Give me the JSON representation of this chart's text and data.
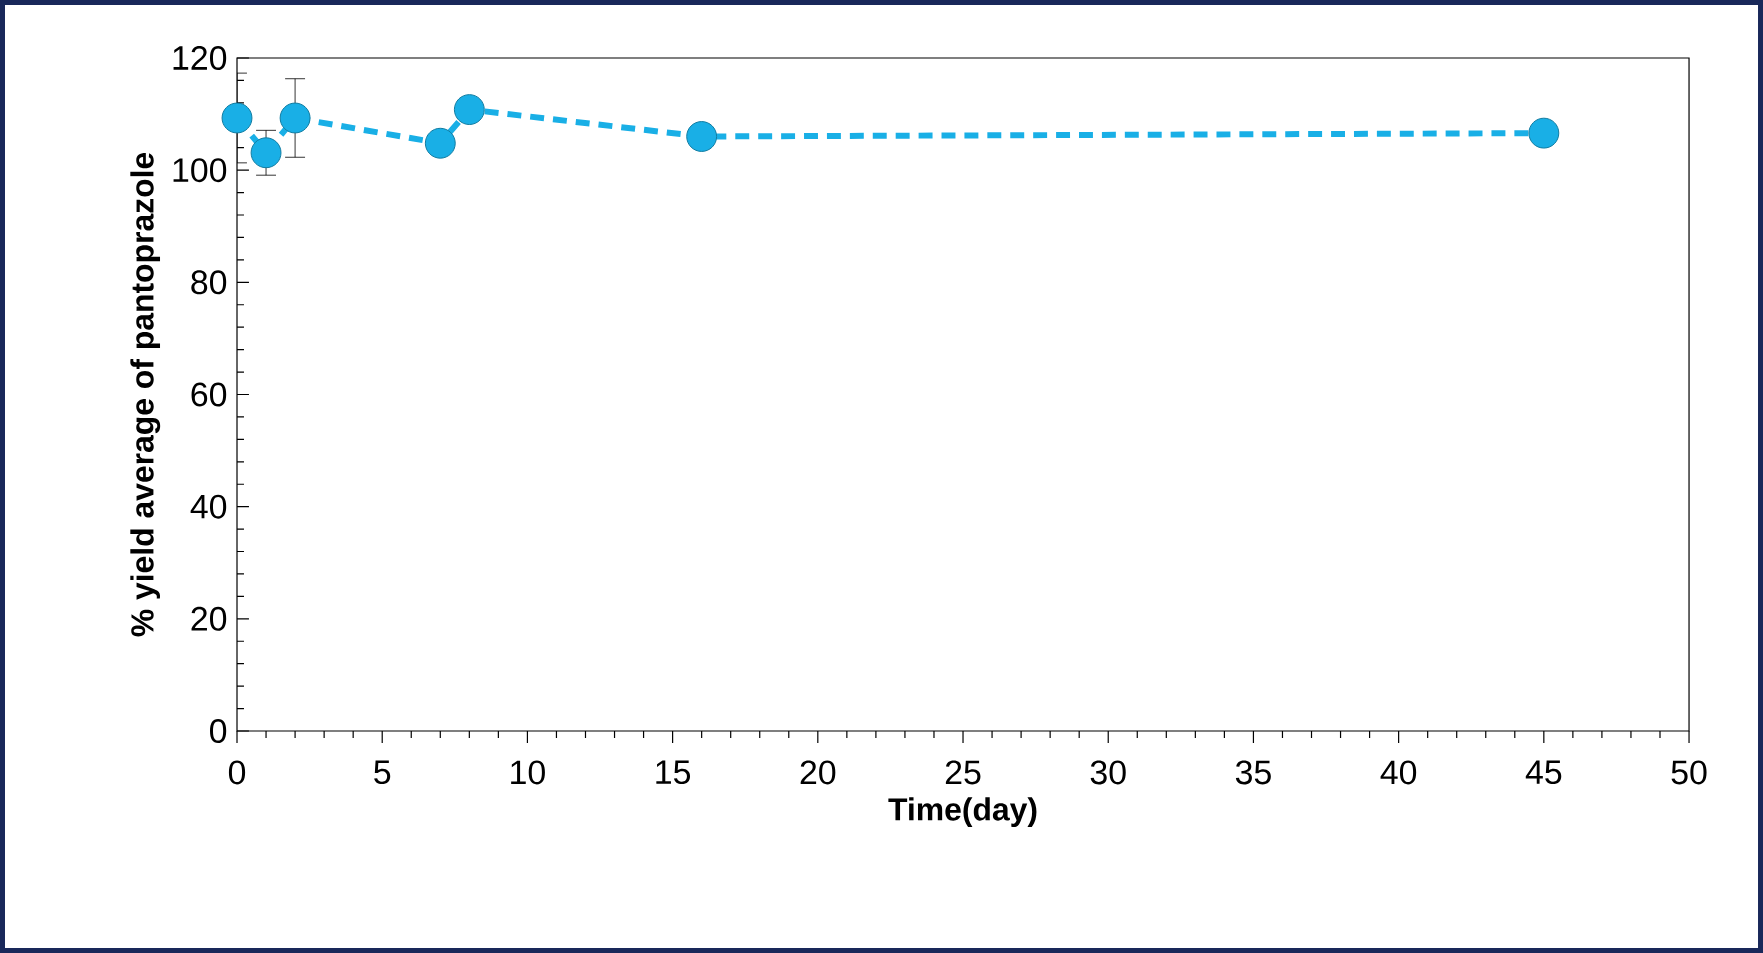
{
  "chart_data": {
    "type": "line",
    "xlabel": "Time(day)",
    "ylabel": "% yield average of pantoprazole",
    "x": [
      0,
      1,
      2,
      7,
      8,
      16,
      45
    ],
    "series": [
      {
        "color": "#19afe6",
        "values": [
          109.3,
          103.1,
          109.3,
          104.8,
          110.8,
          106,
          106.6
        ],
        "errors": [
          8,
          4,
          7,
          null,
          null,
          null,
          null
        ]
      }
    ],
    "xlim": [
      0,
      50
    ],
    "xticks": [
      0,
      5,
      10,
      15,
      20,
      25,
      30,
      35,
      40,
      45,
      50
    ],
    "ylim": [
      0,
      120
    ],
    "yticks": [
      0,
      20,
      40,
      60,
      80,
      100,
      120
    ],
    "marker": "circle",
    "line_style": "dashed"
  }
}
